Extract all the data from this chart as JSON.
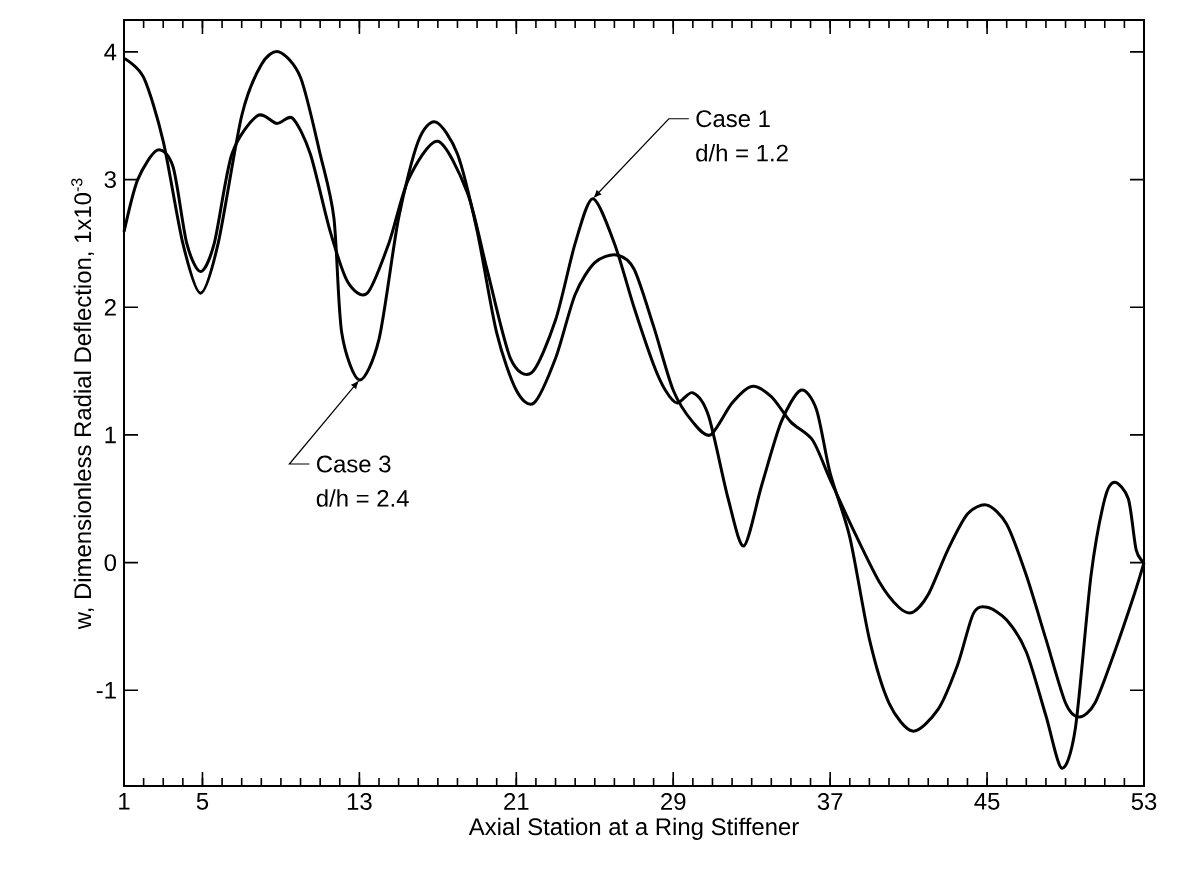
{
  "chart_data": {
    "type": "line",
    "xlabel": "Axial Station at a Ring Stiffener",
    "ylabel": "w, Dimensionless Radial Deflection, 1x10$^{-3}$",
    "xlim": [
      1,
      53
    ],
    "ylim": [
      -1.75,
      4.25
    ],
    "xticks": [
      1,
      5,
      13,
      21,
      29,
      37,
      45,
      53
    ],
    "yticks": [
      -1,
      0,
      1,
      2,
      3,
      4
    ],
    "grid": false,
    "marker": "none",
    "line_style": "solid",
    "series": [
      {
        "color": "#000000",
        "x": [
          1,
          1.7,
          2.7,
          3.5,
          4.2,
          4.9,
          5.6,
          6.5,
          7.8,
          8.8,
          9.6,
          10.5,
          11.5,
          12.4,
          13.4,
          14.5,
          15.5,
          17,
          18.5,
          19.5,
          20.7,
          21.8,
          23,
          24,
          24.9,
          26,
          27,
          28,
          28.6,
          29.2,
          30,
          30.8,
          31.8,
          32.6,
          33.5,
          34.5,
          35.5,
          36.3,
          37,
          38,
          39,
          40,
          41.2,
          42.5,
          43.5,
          44.3,
          45,
          46,
          47,
          48,
          48.8,
          49.5,
          50.3,
          51,
          51.5,
          52.2,
          52.6,
          53
        ],
        "values": [
          2.59,
          3.0,
          3.23,
          3.1,
          2.5,
          2.28,
          2.5,
          3.2,
          3.5,
          3.44,
          3.48,
          3.2,
          2.6,
          2.2,
          2.11,
          2.5,
          3.0,
          3.3,
          2.9,
          2.3,
          1.6,
          1.49,
          1.9,
          2.5,
          2.85,
          2.5,
          2.0,
          1.55,
          1.35,
          1.25,
          1.33,
          1.15,
          0.5,
          0.13,
          0.6,
          1.1,
          1.35,
          1.2,
          0.7,
          0.2,
          -0.6,
          -1.1,
          -1.32,
          -1.15,
          -0.8,
          -0.4,
          -0.35,
          -0.45,
          -0.7,
          -1.2,
          -1.61,
          -1.3,
          -0.1,
          0.5,
          0.63,
          0.5,
          0.1,
          0
        ]
      },
      {
        "color": "#000000",
        "x": [
          1,
          2,
          3,
          4,
          4.9,
          5.8,
          7,
          8,
          8.9,
          10,
          11,
          11.7,
          12.1,
          13,
          14,
          15,
          16,
          16.9,
          18,
          19,
          20,
          21,
          21.9,
          23,
          24,
          25,
          26.1,
          27,
          28,
          29,
          30,
          30.9,
          32,
          33,
          34,
          35,
          36.1,
          37,
          38.2,
          39.5,
          40.5,
          41.2,
          42,
          43,
          44,
          45,
          46,
          47,
          48,
          49,
          49.7,
          50.5,
          51.5,
          52.5,
          53
        ],
        "values": [
          3.95,
          3.8,
          3.3,
          2.5,
          2.11,
          2.5,
          3.5,
          3.9,
          4.0,
          3.8,
          3.2,
          2.7,
          1.8,
          1.43,
          1.75,
          2.7,
          3.3,
          3.45,
          3.2,
          2.6,
          1.8,
          1.35,
          1.25,
          1.6,
          2.1,
          2.35,
          2.41,
          2.3,
          1.85,
          1.35,
          1.1,
          1.0,
          1.25,
          1.38,
          1.3,
          1.1,
          0.96,
          0.65,
          0.25,
          -0.15,
          -0.35,
          -0.39,
          -0.25,
          0.1,
          0.38,
          0.45,
          0.3,
          -0.1,
          -0.6,
          -1.1,
          -1.21,
          -1.1,
          -0.7,
          -0.25,
          0
        ]
      }
    ],
    "annotations": [
      {
        "text": "Case 1",
        "x": 24.9,
        "y": 2.85
      },
      "d/h = 1.2",
      {
        "text": "Case 3",
        "x": 13,
        "y": 1.43
      },
      "d/h = 2.4"
    ]
  }
}
